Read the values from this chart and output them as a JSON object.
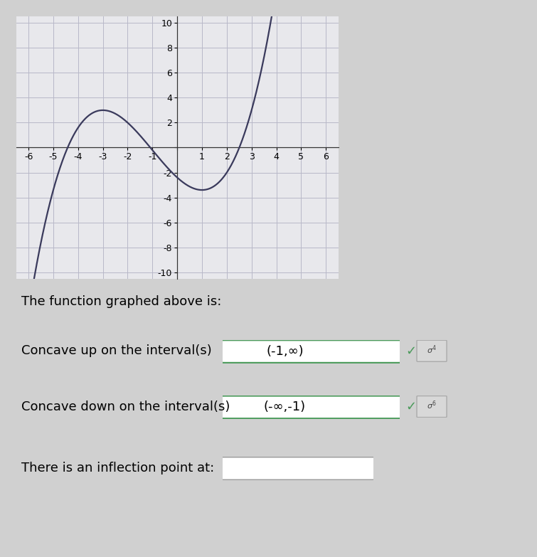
{
  "xlim": [
    -6.5,
    6.5
  ],
  "ylim": [
    -10.5,
    10.5
  ],
  "curve_color": "#3a3a5c",
  "curve_linewidth": 1.6,
  "bg_color": "#d0d0d0",
  "graph_bg_color": "#e8e8ec",
  "grid_color": "#b8b8c8",
  "axis_color": "#333333",
  "text_label1": "The function graphed above is:",
  "text_concave_up_label": "Concave up on the interval(s)",
  "text_concave_up_value": "(-1,∞)",
  "text_concave_down_label": "Concave down on the interval(s)",
  "text_concave_down_value": "(-∞,-1)",
  "text_inflection_label": "There is an inflection point at:",
  "font_size_text": 13,
  "font_size_axis": 9,
  "box_border_color": "#4a9a5a",
  "check_color": "#4a9a5a",
  "sigma_bg": "#d8d8d8",
  "sigma_border": "#aaaaaa",
  "cubic_a": 0.2,
  "cubic_d": -2.4
}
